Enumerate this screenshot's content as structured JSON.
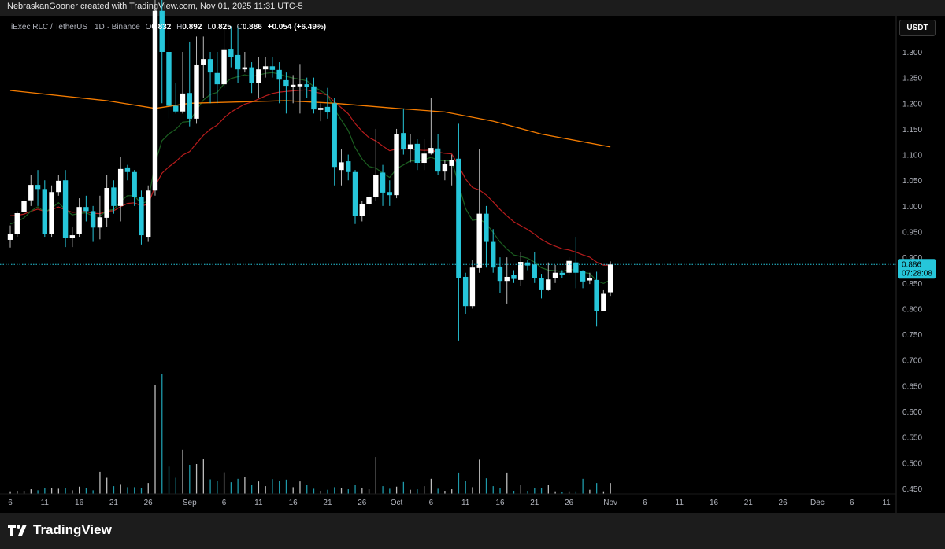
{
  "header": {
    "credit": "NebraskanGooner created with TradingView.com, Nov 01, 2025 11:31 UTC-5"
  },
  "legend": {
    "symbol": "iExec RLC / TetherUS · 1D · Binance",
    "o_label": "O",
    "o": "0.832",
    "h_label": "H",
    "h": "0.892",
    "l_label": "L",
    "l": "0.825",
    "c_label": "C",
    "c": "0.886",
    "change": "+0.054 (+6.49%)"
  },
  "price_axis": {
    "unit_button": "USDT",
    "ticks": [
      "1.300",
      "1.250",
      "1.200",
      "1.150",
      "1.100",
      "1.050",
      "1.000",
      "0.950",
      "0.900",
      "0.850",
      "0.800",
      "0.750",
      "0.700",
      "0.650",
      "0.600",
      "0.550",
      "0.500",
      "0.450"
    ],
    "last_price": "0.886",
    "countdown": "07:28:08"
  },
  "footer": {
    "brand": "TradingView"
  },
  "colors": {
    "up": "#ffffff",
    "down": "#26c6da",
    "ma_long": "#f57c00",
    "ma_mid": "#b71c1c",
    "ma_short": "#1b5e20",
    "last_price": "#26c6da"
  },
  "chart_data": {
    "type": "candlestick",
    "interval": "1D",
    "x_start": "2025-08-06",
    "x_ticks": [
      [
        "2025-08-06",
        "6"
      ],
      [
        "2025-08-11",
        "11"
      ],
      [
        "2025-08-16",
        "16"
      ],
      [
        "2025-08-21",
        "21"
      ],
      [
        "2025-08-26",
        "26"
      ],
      [
        "2025-09-01",
        "Sep"
      ],
      [
        "2025-09-06",
        "6"
      ],
      [
        "2025-09-11",
        "11"
      ],
      [
        "2025-09-16",
        "16"
      ],
      [
        "2025-09-21",
        "21"
      ],
      [
        "2025-09-26",
        "26"
      ],
      [
        "2025-10-01",
        "Oct"
      ],
      [
        "2025-10-06",
        "6"
      ],
      [
        "2025-10-11",
        "11"
      ],
      [
        "2025-10-16",
        "16"
      ],
      [
        "2025-10-21",
        "21"
      ],
      [
        "2025-10-26",
        "26"
      ],
      [
        "2025-11-01",
        "Nov"
      ],
      [
        "2025-11-06",
        "6"
      ],
      [
        "2025-11-11",
        "11"
      ],
      [
        "2025-11-16",
        "16"
      ],
      [
        "2025-11-21",
        "21"
      ],
      [
        "2025-11-26",
        "26"
      ],
      [
        "2025-12-01",
        "Dec"
      ],
      [
        "2025-12-06",
        "6"
      ],
      [
        "2025-12-11",
        "11"
      ]
    ],
    "ylim": [
      0.45,
      1.3
    ],
    "ohlc_fields": [
      "open",
      "high",
      "low",
      "close"
    ],
    "candles": [
      [
        0.934,
        0.962,
        0.919,
        0.945
      ],
      [
        0.945,
        0.99,
        0.94,
        0.986
      ],
      [
        0.988,
        1.02,
        0.975,
        1.009
      ],
      [
        1.011,
        1.06,
        1.0,
        1.041
      ],
      [
        1.041,
        1.07,
        1.0,
        1.033
      ],
      [
        1.033,
        1.05,
        0.94,
        0.946
      ],
      [
        0.946,
        1.04,
        0.94,
        1.027
      ],
      [
        1.027,
        1.06,
        1.02,
        1.049
      ],
      [
        1.05,
        1.07,
        0.92,
        0.937
      ],
      [
        0.937,
        0.96,
        0.92,
        0.943
      ],
      [
        0.945,
        1.015,
        0.94,
        0.998
      ],
      [
        0.998,
        1.02,
        0.97,
        0.99
      ],
      [
        0.99,
        1.0,
        0.93,
        0.958
      ],
      [
        0.958,
        1.02,
        0.935,
        0.978
      ],
      [
        0.977,
        1.06,
        0.96,
        1.035
      ],
      [
        1.036,
        1.05,
        0.985,
        1.0
      ],
      [
        1.0,
        1.095,
        0.97,
        1.072
      ],
      [
        1.075,
        1.08,
        1.05,
        1.066
      ],
      [
        1.066,
        1.07,
        1.0,
        1.018
      ],
      [
        1.018,
        1.03,
        0.925,
        0.943
      ],
      [
        0.94,
        1.04,
        0.93,
        1.03
      ],
      [
        1.03,
        1.45,
        1.02,
        1.38
      ],
      [
        1.38,
        1.45,
        1.2,
        1.3
      ],
      [
        1.3,
        1.35,
        1.17,
        1.195
      ],
      [
        1.195,
        1.24,
        1.18,
        1.184
      ],
      [
        1.184,
        1.3,
        1.18,
        1.219
      ],
      [
        1.22,
        1.32,
        1.155,
        1.17
      ],
      [
        1.17,
        1.33,
        1.16,
        1.274
      ],
      [
        1.274,
        1.33,
        1.21,
        1.286
      ],
      [
        1.286,
        1.3,
        1.2,
        1.26
      ],
      [
        1.259,
        1.3,
        1.2,
        1.237
      ],
      [
        1.237,
        1.35,
        1.23,
        1.305
      ],
      [
        1.306,
        1.35,
        1.27,
        1.29
      ],
      [
        1.294,
        1.35,
        1.24,
        1.266
      ],
      [
        1.266,
        1.3,
        1.26,
        1.27
      ],
      [
        1.27,
        1.28,
        1.22,
        1.239
      ],
      [
        1.24,
        1.29,
        1.21,
        1.266
      ],
      [
        1.266,
        1.29,
        1.25,
        1.272
      ],
      [
        1.272,
        1.29,
        1.25,
        1.265
      ],
      [
        1.265,
        1.28,
        1.2,
        1.246
      ],
      [
        1.245,
        1.26,
        1.18,
        1.234
      ],
      [
        1.232,
        1.255,
        1.2,
        1.236
      ],
      [
        1.233,
        1.275,
        1.18,
        1.237
      ],
      [
        1.237,
        1.25,
        1.21,
        1.232
      ],
      [
        1.233,
        1.25,
        1.18,
        1.188
      ],
      [
        1.187,
        1.2,
        1.165,
        1.191
      ],
      [
        1.193,
        1.23,
        1.17,
        1.182
      ],
      [
        1.2,
        1.21,
        1.04,
        1.076
      ],
      [
        1.07,
        1.11,
        1.04,
        1.085
      ],
      [
        1.087,
        1.1,
        1.05,
        1.066
      ],
      [
        1.066,
        1.07,
        0.965,
        0.98
      ],
      [
        0.98,
        1.01,
        0.97,
        1.003
      ],
      [
        1.003,
        1.03,
        0.98,
        1.018
      ],
      [
        1.018,
        1.15,
        1.01,
        1.061
      ],
      [
        1.065,
        1.08,
        1.0,
        1.026
      ],
      [
        1.027,
        1.05,
        1.0,
        1.021
      ],
      [
        1.021,
        1.15,
        1.015,
        1.14
      ],
      [
        1.142,
        1.19,
        1.1,
        1.11
      ],
      [
        1.11,
        1.14,
        1.085,
        1.12
      ],
      [
        1.121,
        1.13,
        1.07,
        1.084
      ],
      [
        1.084,
        1.13,
        1.07,
        1.102
      ],
      [
        1.102,
        1.21,
        1.1,
        1.113
      ],
      [
        1.112,
        1.14,
        1.06,
        1.067
      ],
      [
        1.067,
        1.09,
        1.05,
        1.081
      ],
      [
        1.078,
        1.1,
        1.04,
        1.09
      ],
      [
        1.092,
        1.16,
        0.738,
        0.86
      ],
      [
        0.862,
        0.87,
        0.79,
        0.805
      ],
      [
        0.805,
        0.895,
        0.8,
        0.88
      ],
      [
        0.879,
        1.11,
        0.87,
        0.985
      ],
      [
        0.985,
        1.0,
        0.88,
        0.93
      ],
      [
        0.93,
        0.955,
        0.87,
        0.88
      ],
      [
        0.882,
        0.9,
        0.83,
        0.854
      ],
      [
        0.854,
        0.9,
        0.81,
        0.862
      ],
      [
        0.866,
        0.875,
        0.85,
        0.858
      ],
      [
        0.856,
        0.91,
        0.845,
        0.891
      ],
      [
        0.89,
        0.895,
        0.875,
        0.884
      ],
      [
        0.886,
        0.91,
        0.85,
        0.859
      ],
      [
        0.859,
        0.868,
        0.82,
        0.836
      ],
      [
        0.836,
        0.89,
        0.835,
        0.857
      ],
      [
        0.859,
        0.885,
        0.85,
        0.87
      ],
      [
        0.87,
        0.875,
        0.86,
        0.866
      ],
      [
        0.87,
        0.9,
        0.865,
        0.893
      ],
      [
        0.89,
        0.94,
        0.84,
        0.87
      ],
      [
        0.873,
        0.875,
        0.84,
        0.853
      ],
      [
        0.855,
        0.87,
        0.848,
        0.86
      ],
      [
        0.856,
        0.872,
        0.765,
        0.796
      ],
      [
        0.796,
        0.836,
        0.795,
        0.829
      ],
      [
        0.832,
        0.892,
        0.825,
        0.886
      ]
    ],
    "volume": [
      10,
      12,
      12,
      18,
      14,
      22,
      24,
      20,
      24,
      14,
      28,
      24,
      14,
      85,
      62,
      30,
      38,
      26,
      26,
      24,
      42,
      420,
      460,
      105,
      62,
      170,
      112,
      115,
      133,
      56,
      50,
      83,
      45,
      58,
      65,
      35,
      48,
      30,
      57,
      50,
      55,
      26,
      48,
      36,
      20,
      12,
      16,
      26,
      22,
      18,
      36,
      24,
      18,
      142,
      30,
      20,
      28,
      46,
      16,
      18,
      30,
      58,
      20,
      12,
      18,
      82,
      50,
      26,
      132,
      60,
      30,
      22,
      82,
      12,
      36,
      12,
      22,
      22,
      36,
      10,
      6,
      10,
      10,
      58,
      16,
      42,
      10,
      42
    ],
    "ma_long_points": [
      [
        "2025-08-06",
        1.225
      ],
      [
        "2025-08-20",
        1.205
      ],
      [
        "2025-08-27",
        1.19
      ],
      [
        "2025-09-01",
        1.2
      ],
      [
        "2025-09-15",
        1.205
      ],
      [
        "2025-09-22",
        1.2
      ],
      [
        "2025-10-01",
        1.19
      ],
      [
        "2025-10-08",
        1.183
      ],
      [
        "2025-10-15",
        1.165
      ],
      [
        "2025-10-22",
        1.14
      ],
      [
        "2025-11-01",
        1.115
      ]
    ],
    "grid": false
  }
}
